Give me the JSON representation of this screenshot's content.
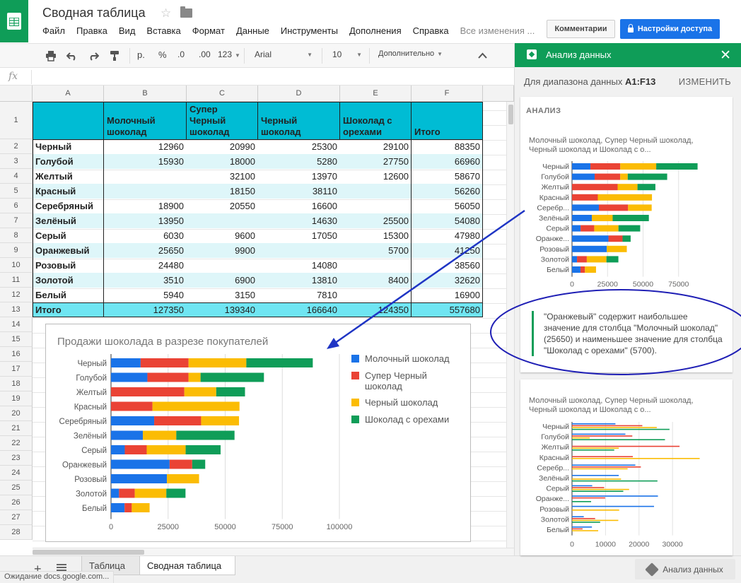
{
  "header": {
    "title": "Сводная таблица",
    "menu": [
      "Файл",
      "Правка",
      "Вид",
      "Вставка",
      "Формат",
      "Данные",
      "Инструменты",
      "Дополнения",
      "Справка"
    ],
    "save_status": "Все изменения ...",
    "comments_label": "Комментарии",
    "share_label": "Настройки доступа"
  },
  "toolbar": {
    "currency": "р.",
    "percent": "%",
    "dec_less": ".0",
    "dec_more": ".00",
    "number_format": "123",
    "font": "Arial",
    "font_size": "10",
    "more": "Дополнительно"
  },
  "formula_bar": {
    "fx": "fx"
  },
  "sheet": {
    "columns": [
      "A",
      "B",
      "C",
      "D",
      "E",
      "F"
    ],
    "row_numbers": [
      "1",
      "2",
      "3",
      "4",
      "5",
      "6",
      "7",
      "8",
      "9",
      "10",
      "11",
      "12",
      "13",
      "14",
      "15",
      "16",
      "17",
      "18",
      "19",
      "20",
      "21",
      "22",
      "23",
      "24",
      "25",
      "26",
      "27",
      "28"
    ],
    "header_cells": [
      "",
      "Молочный шоколад",
      "Супер Черный шоколад",
      "Черный шоколад",
      "Шоколад с орехами",
      "Итого"
    ],
    "rows": [
      [
        "Черный",
        "12960",
        "20990",
        "25300",
        "29100",
        "88350"
      ],
      [
        "Голубой",
        "15930",
        "18000",
        "5280",
        "27750",
        "66960"
      ],
      [
        "Желтый",
        "",
        "32100",
        "13970",
        "12600",
        "58670"
      ],
      [
        "Красный",
        "",
        "18150",
        "38110",
        "",
        "56260"
      ],
      [
        "Серебряный",
        "18900",
        "20550",
        "16600",
        "",
        "56050"
      ],
      [
        "Зелёный",
        "13950",
        "",
        "14630",
        "25500",
        "54080"
      ],
      [
        "Серый",
        "6030",
        "9600",
        "17050",
        "15300",
        "47980"
      ],
      [
        "Оранжевый",
        "25650",
        "9900",
        "",
        "5700",
        "41250"
      ],
      [
        "Розовый",
        "24480",
        "",
        "14080",
        "",
        "38560"
      ],
      [
        "Золотой",
        "3510",
        "6900",
        "13810",
        "8400",
        "32620"
      ],
      [
        "Белый",
        "5940",
        "3150",
        "7810",
        "",
        "16900"
      ]
    ],
    "total_row": [
      "Итого",
      "127350",
      "139340",
      "166640",
      "124350",
      "557680"
    ]
  },
  "chart_data": [
    {
      "type": "bar",
      "orientation": "horizontal",
      "stacked": true,
      "title": "Продажи шоколада в разрезе покупателей",
      "categories": [
        "Черный",
        "Голубой",
        "Желтый",
        "Красный",
        "Серебряный",
        "Зелёный",
        "Серый",
        "Оранжевый",
        "Розовый",
        "Золотой",
        "Белый"
      ],
      "series": [
        {
          "name": "Молочный шоколад",
          "color": "#1a73e8",
          "values": [
            12960,
            15930,
            0,
            0,
            18900,
            13950,
            6030,
            25650,
            24480,
            3510,
            5940
          ]
        },
        {
          "name": "Супер Черный шоколад",
          "color": "#ea4335",
          "values": [
            20990,
            18000,
            32100,
            18150,
            20550,
            0,
            9600,
            9900,
            0,
            6900,
            3150
          ]
        },
        {
          "name": "Черный шоколад",
          "color": "#fbbc04",
          "values": [
            25300,
            5280,
            13970,
            38110,
            16600,
            14630,
            17050,
            0,
            14080,
            13810,
            7810
          ]
        },
        {
          "name": "Шоколад с орехами",
          "color": "#0f9d58",
          "values": [
            29100,
            27750,
            12600,
            0,
            0,
            25500,
            15300,
            5700,
            0,
            8400,
            0
          ]
        }
      ],
      "xlim": [
        0,
        100000
      ],
      "x_ticks": [
        "0",
        "25000",
        "50000",
        "75000",
        "100000"
      ],
      "legend": "right",
      "grid": true
    },
    {
      "type": "bar",
      "orientation": "horizontal",
      "stacked": true,
      "title": "Молочный шоколад, Супер Черный шоколад, Черный шоколад и Шоколад с о...",
      "categories": [
        "Черный",
        "Голубой",
        "Желтый",
        "Красный",
        "Серебр...",
        "Зелёный",
        "Серый",
        "Оранже...",
        "Розовый",
        "Золотой",
        "Белый"
      ],
      "series_ref": "same as chart 1",
      "xlim": [
        0,
        100000
      ],
      "x_ticks": [
        "0",
        "25000",
        "50000",
        "75000"
      ],
      "legend": "none"
    },
    {
      "type": "bar",
      "orientation": "horizontal",
      "stacked": false,
      "title": "Молочный шоколад, Супер Черный шоколад, Черный шоколад и Шоколад с о...",
      "categories": [
        "Черный",
        "Голубой",
        "Желтый",
        "Красный",
        "Серебр...",
        "Зелёный",
        "Серый",
        "Оранже...",
        "Розовый",
        "Золотой",
        "Белый"
      ],
      "series_ref": "same as chart 1",
      "xlim": [
        0,
        40000
      ],
      "x_ticks": [
        "0",
        "10000",
        "20000",
        "30000"
      ],
      "legend": "none"
    }
  ],
  "panel": {
    "title": "Анализ данных",
    "range_label": "Для диапазона данных",
    "range_value": "A1:F13",
    "change_label": "ИЗМЕНИТЬ",
    "section": "АНАЛИЗ",
    "insight": "\"Оранжевый\" содержит наибольшее значение для столбца \"Молочный шоколад\" (25650) и наименьшее значение для столбца \"Шоколад с орехами\" (5700)."
  },
  "bottom": {
    "tabs": [
      "Таблица",
      "Сводная таблица"
    ],
    "status": "Ожидание docs.google.com...",
    "explore_label": "Анализ данных"
  }
}
